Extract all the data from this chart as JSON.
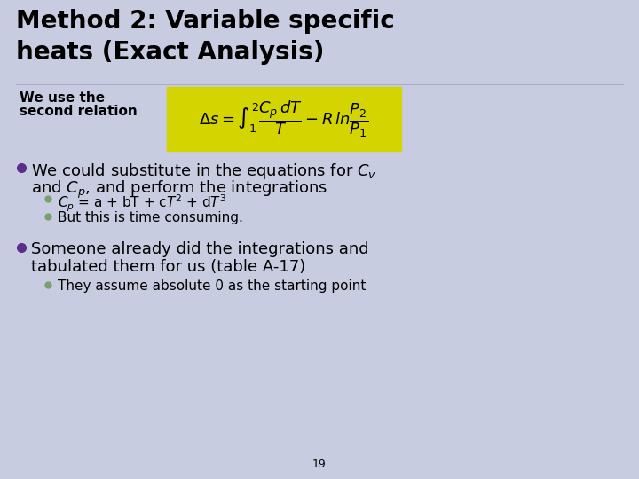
{
  "background_color": "#c8cce0",
  "title_line1": "Method 2: Variable specific",
  "title_line2": "heats (Exact Analysis)",
  "title_fontsize": 20,
  "title_color": "#000000",
  "label_text1": "We use the",
  "label_text2": "second relation",
  "label_fontsize": 11,
  "formula_box_color": "#d4d400",
  "formula_text": "$\\Delta s = \\int_{1}^{2} \\dfrac{C_p\\,dT}{T} - R\\,ln\\dfrac{P_2}{P_1}$",
  "formula_fontsize": 13,
  "bullet_color": "#5c2d8a",
  "sub_bullet_color": "#7aa070",
  "bullet1_line1": "We could substitute in the equations for $C_v$",
  "bullet1_line2": "and $C_p$, and perform the integrations",
  "bullet1_fontsize": 13,
  "sub_bullet1": "$C_p$ = a + bT + c$T^2$ + d$T^3$",
  "sub_bullet2": "But this is time consuming.",
  "sub_bullet_fontsize": 11,
  "bullet2_line1": "Someone already did the integrations and",
  "bullet2_line2": "tabulated them for us (table A-17)",
  "bullet2_fontsize": 13,
  "sub_bullet3": "They assume absolute 0 as the starting point",
  "page_number": "19",
  "page_number_fontsize": 9
}
